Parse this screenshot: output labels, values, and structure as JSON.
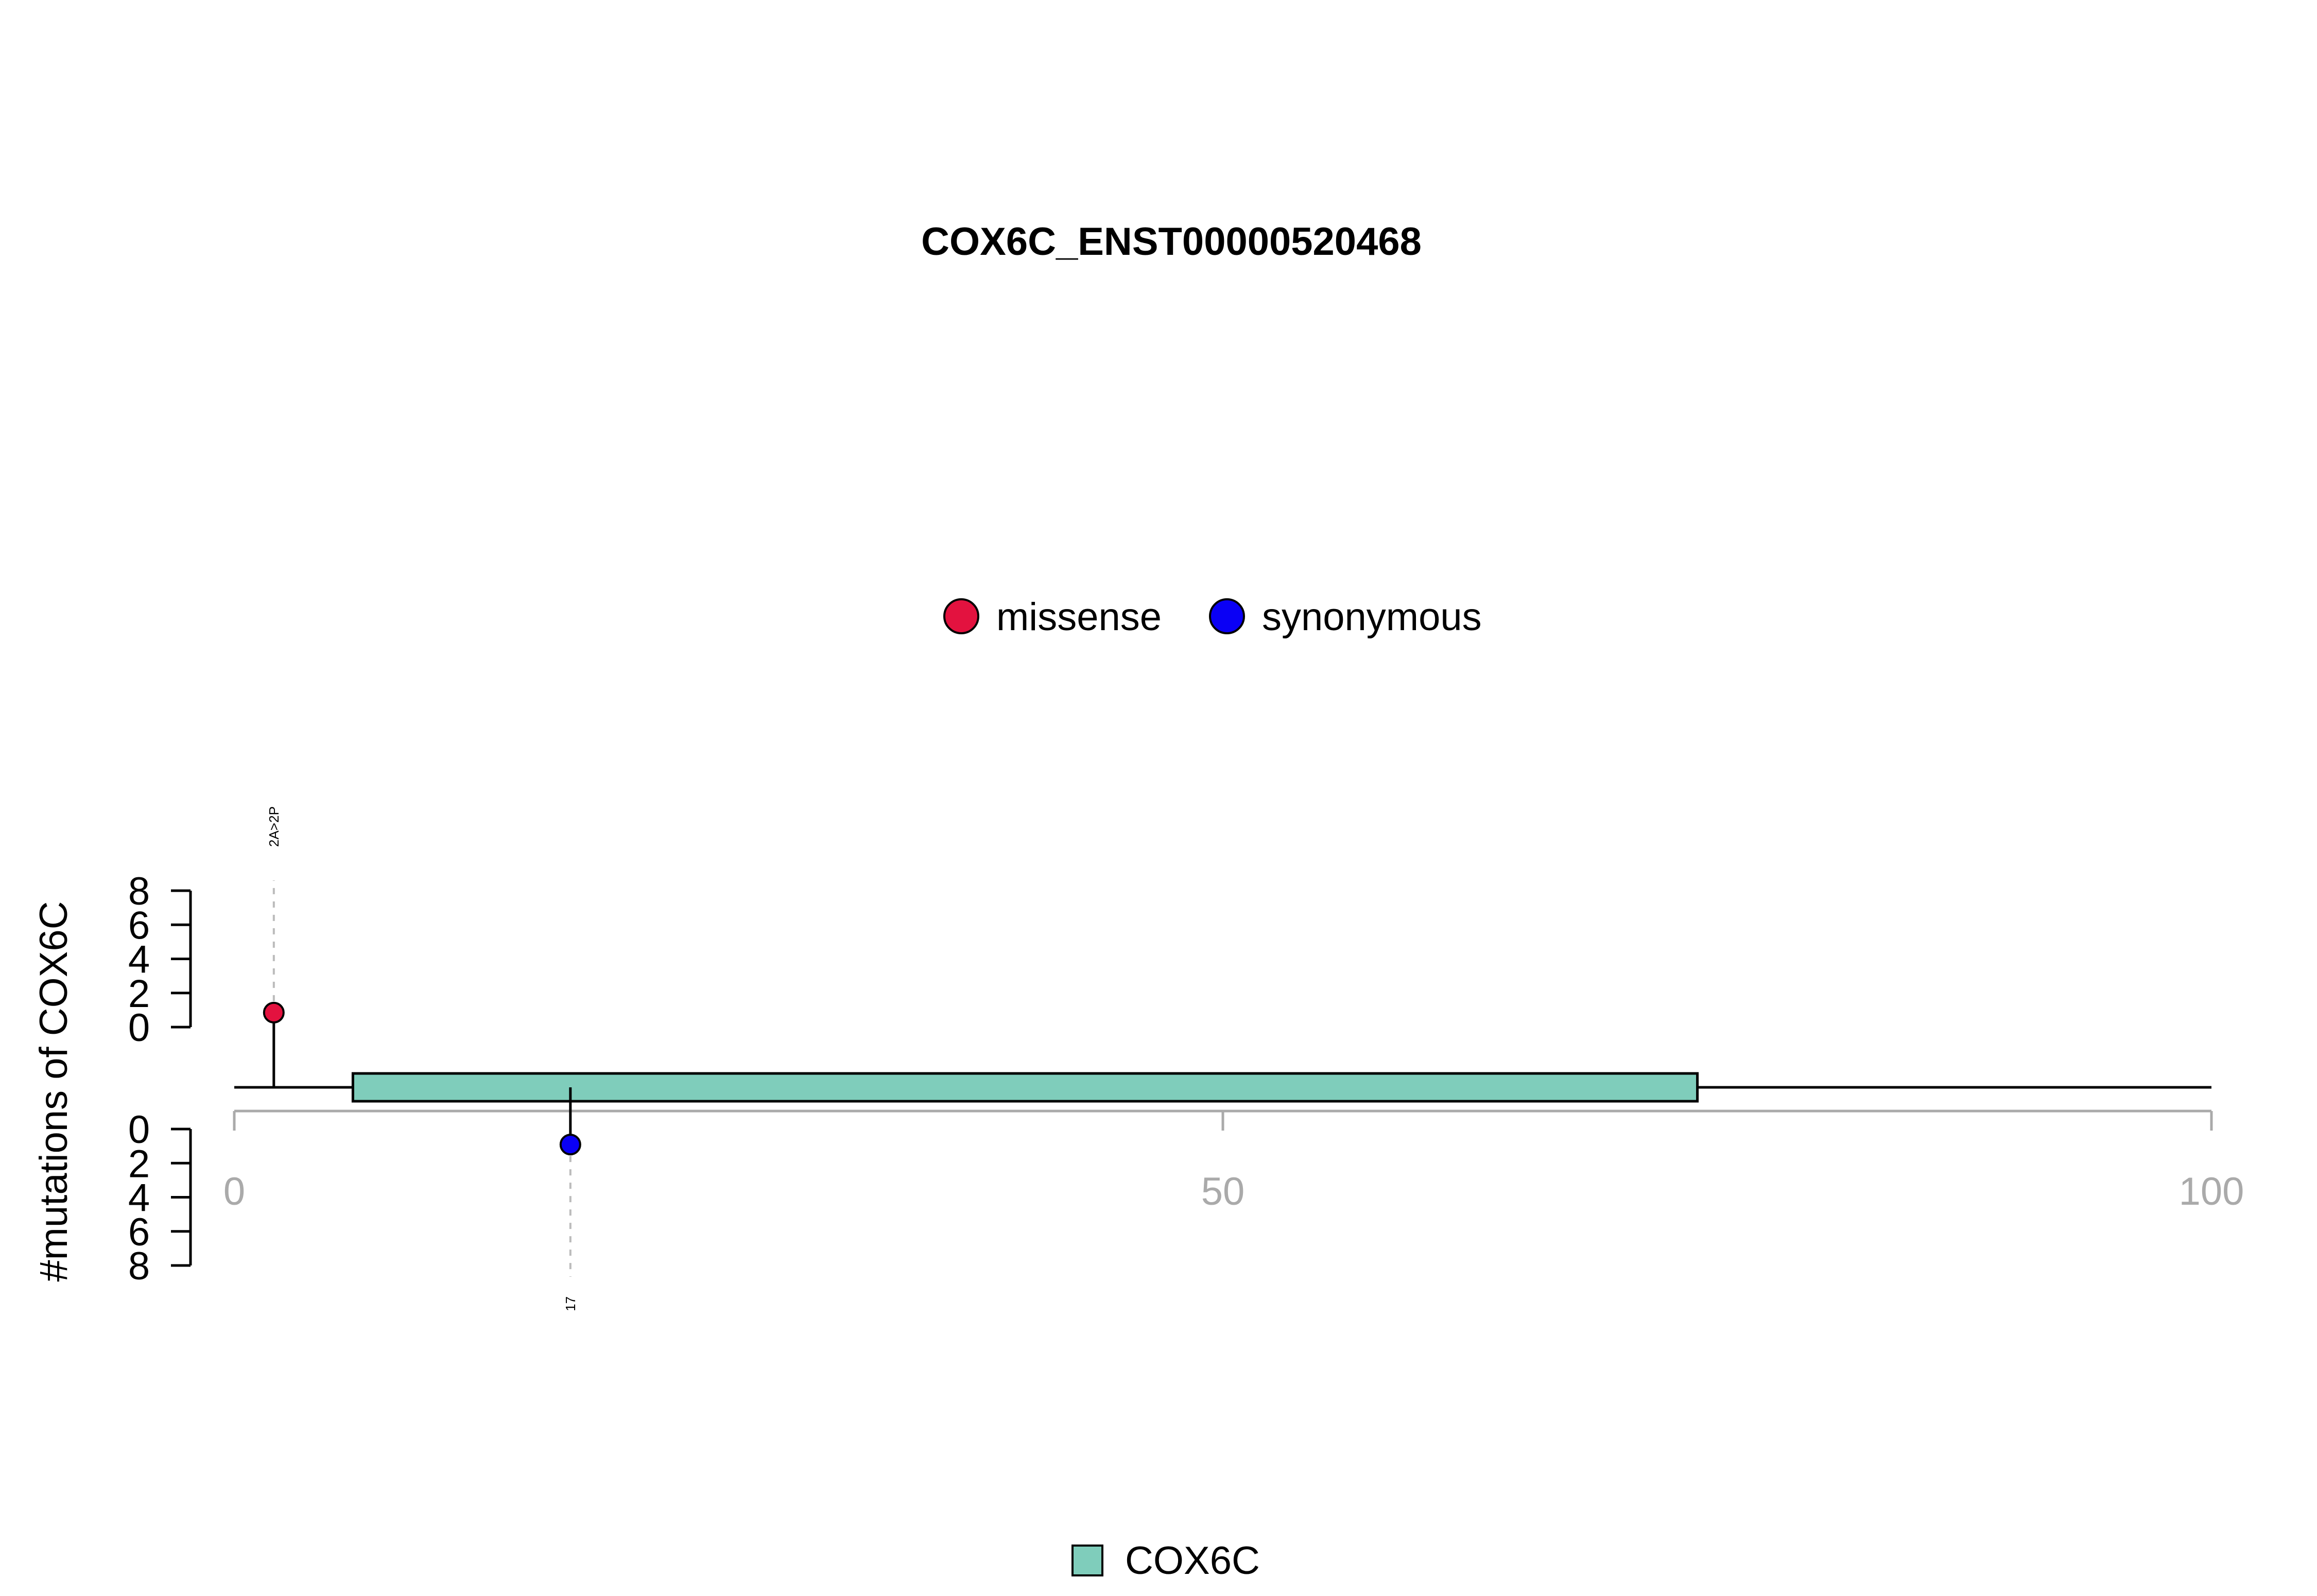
{
  "chart_data": {
    "type": "lollipop",
    "title": "COX6C_ENST00000520468",
    "ylabel": "#mutations of COX6C",
    "xlim": [
      0,
      100
    ],
    "x_ticks": [
      "0",
      "50",
      "100"
    ],
    "x_tick_values": [
      0,
      50,
      100
    ],
    "y_ticks": [
      "0",
      "2",
      "4",
      "6",
      "8"
    ],
    "y_tick_values": [
      0,
      2,
      4,
      6,
      8
    ],
    "ylim": [
      0,
      8
    ],
    "legend_top": [
      {
        "name": "missense",
        "color": "#e3123f"
      },
      {
        "name": "synonymous",
        "color": "#0a00f5"
      }
    ],
    "mutations": [
      {
        "position": 2,
        "count": 1,
        "type": "missense",
        "label": "2A>2P",
        "side": "top",
        "color": "#e3123f"
      },
      {
        "position": 17,
        "count": 1,
        "type": "synonymous",
        "label": "17",
        "side": "bottom",
        "color": "#0a00f5"
      }
    ],
    "domains": [
      {
        "name": "COX6C",
        "start": 6,
        "end": 74,
        "color": "#7fcdbb"
      }
    ],
    "legend_bottom": [
      {
        "name": "COX6C",
        "color": "#7fcdbb"
      }
    ]
  }
}
